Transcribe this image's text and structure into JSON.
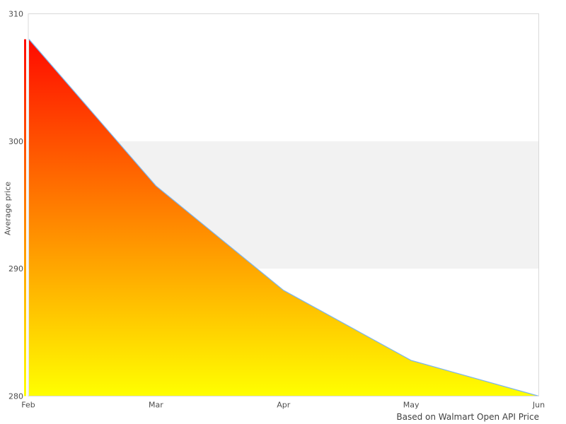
{
  "chart_data": {
    "type": "area",
    "title": "",
    "x": [
      "Feb",
      "Mar",
      "Apr",
      "May",
      "Jun"
    ],
    "series": [
      {
        "name": "Average price",
        "values": [
          308,
          296.5,
          288.3,
          282.8,
          280
        ]
      }
    ],
    "xlabel": "",
    "ylabel": "Average price",
    "ylim": [
      280,
      310
    ],
    "yticks": [
      280,
      290,
      300,
      310
    ],
    "xticks": [
      "Feb",
      "Mar",
      "Apr",
      "May",
      "Jun"
    ],
    "caption": "Based on Walmart Open API Price",
    "legend": "none",
    "grid": "alternate horizontal band only",
    "band": {
      "from": 290,
      "to": 300
    },
    "colors": {
      "line": "#7cb5ec",
      "gradient_top": "#ff0a00",
      "gradient_bottom": "#ffff00",
      "band_fill": "#f2f2f2",
      "plot_border": "#d9d9d9",
      "tick_label": "#4d4d4d",
      "axis_title": "#4d4d4d",
      "credits_text": "#404040",
      "background": "#ffffff"
    }
  }
}
